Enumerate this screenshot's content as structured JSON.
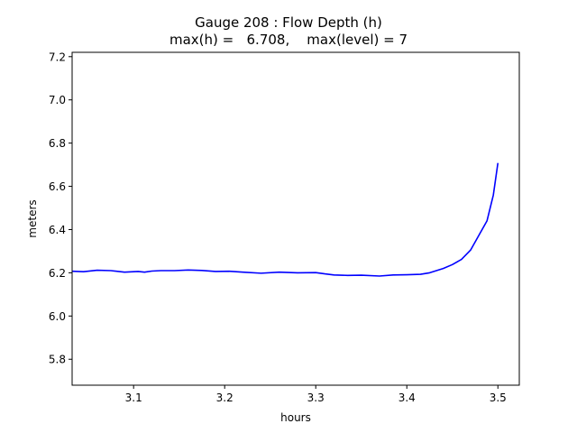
{
  "chart_data": {
    "type": "line",
    "title_line1": "Gauge 208 : Flow Depth (h)",
    "title_line2": "max(h) =   6.708,    max(level) = 7",
    "xlabel": "hours",
    "ylabel": "meters",
    "xlim": [
      3.0325,
      3.5235
    ],
    "ylim": [
      5.68,
      7.22
    ],
    "xticks": [
      3.1,
      3.2,
      3.3,
      3.4,
      3.5
    ],
    "xtick_labels": [
      "3.1",
      "3.2",
      "3.3",
      "3.4",
      "3.5"
    ],
    "yticks": [
      5.8,
      6.0,
      6.2,
      6.4,
      6.6,
      6.8,
      7.0,
      7.2
    ],
    "ytick_labels": [
      "5.8",
      "6.0",
      "6.2",
      "6.4",
      "6.6",
      "6.8",
      "7.0",
      "7.2"
    ],
    "grid": false,
    "series": [
      {
        "color": "#0000ff",
        "x": [
          3.033,
          3.045,
          3.06,
          3.075,
          3.09,
          3.105,
          3.112,
          3.12,
          3.13,
          3.145,
          3.16,
          3.175,
          3.19,
          3.205,
          3.22,
          3.24,
          3.26,
          3.28,
          3.3,
          3.31,
          3.32,
          3.335,
          3.35,
          3.37,
          3.385,
          3.4,
          3.415,
          3.425,
          3.44,
          3.45,
          3.46,
          3.47,
          3.48,
          3.488,
          3.495,
          3.5
        ],
        "y": [
          6.207,
          6.205,
          6.212,
          6.21,
          6.203,
          6.206,
          6.203,
          6.208,
          6.21,
          6.21,
          6.213,
          6.211,
          6.206,
          6.207,
          6.203,
          6.198,
          6.203,
          6.2,
          6.201,
          6.195,
          6.19,
          6.188,
          6.189,
          6.185,
          6.19,
          6.191,
          6.193,
          6.2,
          6.22,
          6.238,
          6.262,
          6.305,
          6.38,
          6.44,
          6.56,
          6.708
        ]
      }
    ]
  }
}
